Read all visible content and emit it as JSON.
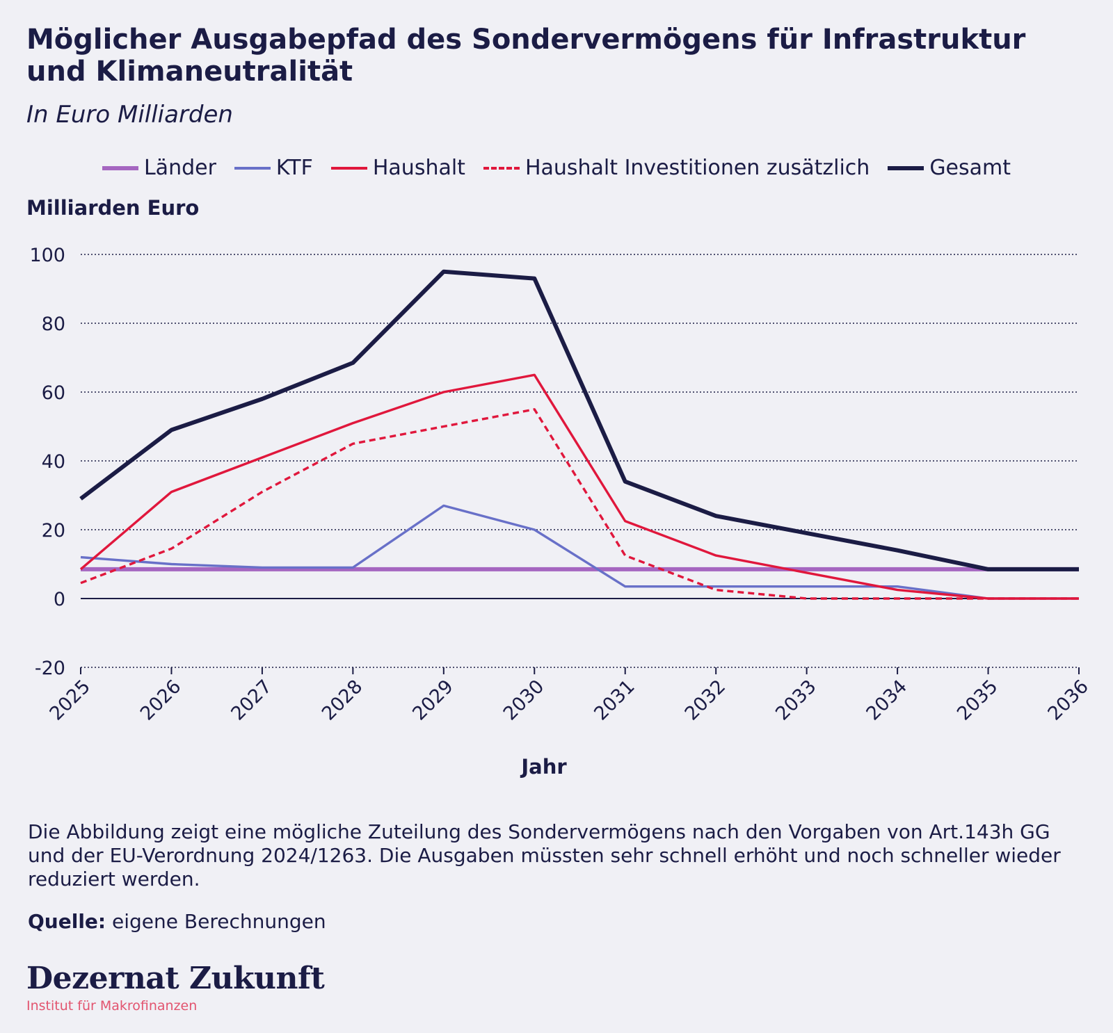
{
  "title": "Möglicher Ausgabepfad des Sondervermögens für Infrastruktur und Klimaneutralität",
  "subtitle": "In Euro Milliarden",
  "note": "Die Abbildung zeigt eine mögliche Zuteilung des Sondervermögens nach den Vorgaben von Art.143h GG und der EU-Verordnung 2024/1263. Die Ausgaben müssten sehr schnell erhöht und noch schneller wieder reduziert werden.",
  "source_label": "Quelle:",
  "source_text": "eigene Berechnungen",
  "brand": {
    "name": "Dezernat Zukunft",
    "tagline": "Institut für Makrofinanzen",
    "tagline_color": "#e2546f"
  },
  "chart_data": {
    "type": "line",
    "title": "Möglicher Ausgabepfad des Sondervermögens für Infrastruktur und Klimaneutralität",
    "xlabel": "Jahr",
    "ylabel": "Milliarden Euro",
    "ylim": [
      -20,
      100
    ],
    "yticks": [
      -20,
      0,
      20,
      40,
      60,
      80,
      100
    ],
    "grid": true,
    "legend_position": "top-center",
    "x": [
      "2025",
      "2026",
      "2027",
      "2028",
      "2029",
      "2030",
      "2031",
      "2032",
      "2033",
      "2034",
      "2035",
      "2036"
    ],
    "series": [
      {
        "name": "Länder",
        "color": "#a566c0",
        "style": "solid",
        "width": "thick",
        "values": [
          8.5,
          8.5,
          8.5,
          8.5,
          8.5,
          8.5,
          8.5,
          8.5,
          8.5,
          8.5,
          8.5,
          8.5
        ]
      },
      {
        "name": "KTF",
        "color": "#6870c8",
        "style": "solid",
        "width": "thin",
        "values": [
          12,
          10,
          9,
          9,
          27,
          20,
          3.5,
          3.5,
          3.5,
          3.5,
          0,
          0
        ]
      },
      {
        "name": "Haushalt",
        "color": "#e0173c",
        "style": "solid",
        "width": "thin",
        "values": [
          8.5,
          31,
          41,
          51,
          60,
          65,
          22.5,
          12.5,
          7.5,
          2.5,
          0,
          0
        ]
      },
      {
        "name": "Haushalt Investitionen zusätzlich",
        "color": "#e0173c",
        "style": "dashed",
        "width": "thin",
        "values": [
          4.5,
          14.5,
          31,
          45,
          50,
          55,
          12.5,
          2.5,
          0,
          0,
          0,
          0
        ]
      },
      {
        "name": "Gesamt",
        "color": "#1b1c45",
        "style": "solid",
        "width": "thick",
        "values": [
          29,
          49,
          58,
          68.5,
          95,
          93,
          34,
          24,
          19,
          14,
          8.5,
          8.5
        ]
      }
    ]
  }
}
